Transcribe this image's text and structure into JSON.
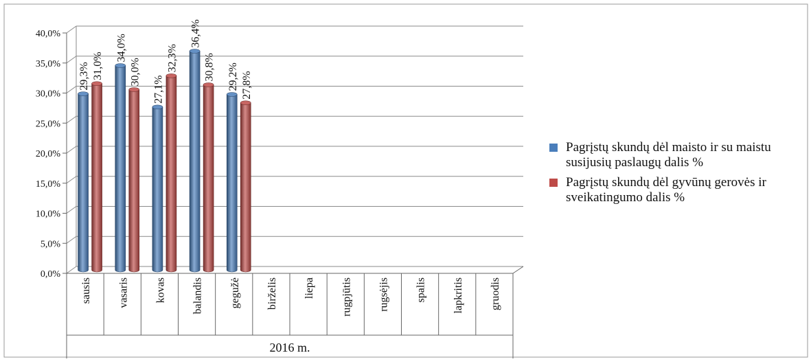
{
  "chart_data": {
    "type": "bar",
    "categories": [
      "sausis",
      "vasaris",
      "kovas",
      "balandis",
      "gegužė",
      "birželis",
      "liepa",
      "rugpjūtis",
      "rugsėjis",
      "spalis",
      "lapkritis",
      "gruodis"
    ],
    "group_label": "2016 m.",
    "series": [
      {
        "name": "Pagrįstų skundų dėl maisto ir su maistu susijusių paslaugų dalis %",
        "color": "#4a7ebb",
        "values": [
          29.3,
          34.0,
          27.1,
          36.4,
          29.2,
          null,
          null,
          null,
          null,
          null,
          null,
          null
        ],
        "labels": [
          "29,3%",
          "34,0%",
          "27,1%",
          "36,4%",
          "29,2%",
          "",
          "",
          "",
          "",
          "",
          "",
          ""
        ]
      },
      {
        "name": "Pagrįstų skundų dėl gyvūnų gerovės ir sveikatingumo dalis %",
        "color": "#be4b48",
        "values": [
          31.0,
          30.0,
          32.3,
          30.8,
          27.8,
          null,
          null,
          null,
          null,
          null,
          null,
          null
        ],
        "labels": [
          "31,0%",
          "30,0%",
          "32,3%",
          "30,8%",
          "27,8%",
          "",
          "",
          "",
          "",
          "",
          "",
          ""
        ]
      }
    ],
    "ylim": [
      0,
      40
    ],
    "yticks": [
      0,
      5,
      10,
      15,
      20,
      25,
      30,
      35,
      40
    ],
    "ytick_labels": [
      "0,0%",
      "5,0%",
      "10,0%",
      "15,0%",
      "20,0%",
      "25,0%",
      "30,0%",
      "35,0%",
      "40,0%"
    ],
    "grid": true,
    "legend_position": "right"
  }
}
